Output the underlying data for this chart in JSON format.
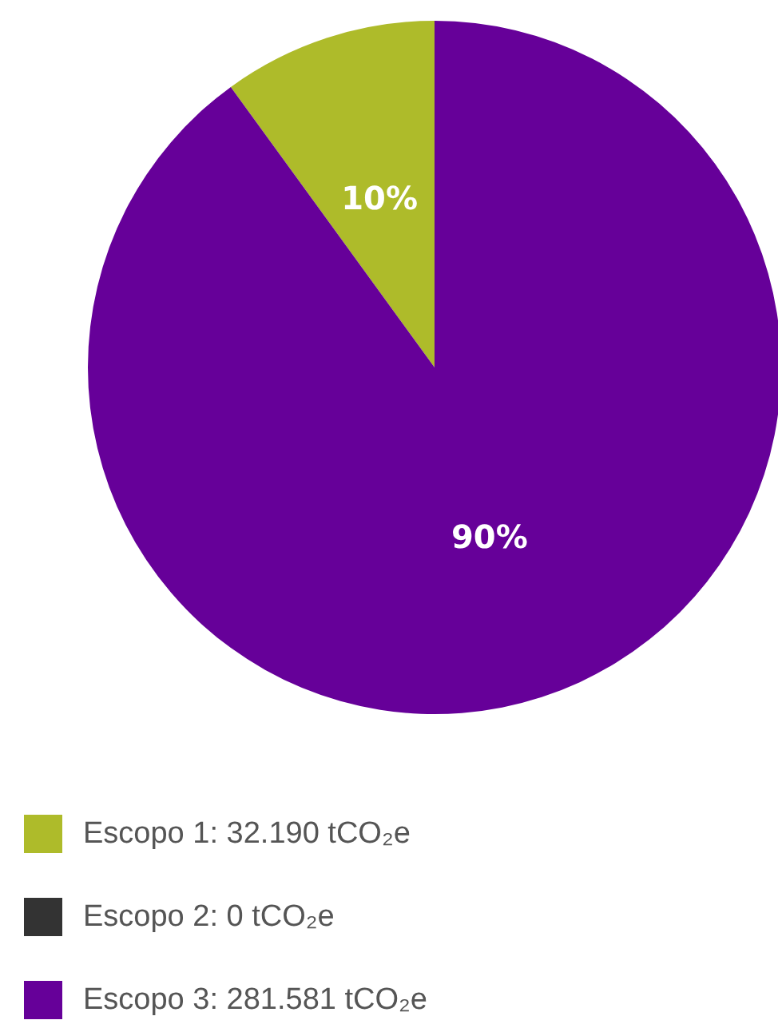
{
  "chart_data": {
    "type": "pie",
    "categories": [
      "Escopo 1: 32.190 tCO₂e",
      "Escopo 2: 0 tCO₂e",
      "Escopo 3: 281.581 tCO₂e"
    ],
    "values": [
      10,
      0,
      90
    ],
    "colors": [
      "#aebb2a",
      "#333333",
      "#660099"
    ],
    "value_labels": [
      "10%",
      null,
      "90%"
    ],
    "legend": "bottom left"
  }
}
